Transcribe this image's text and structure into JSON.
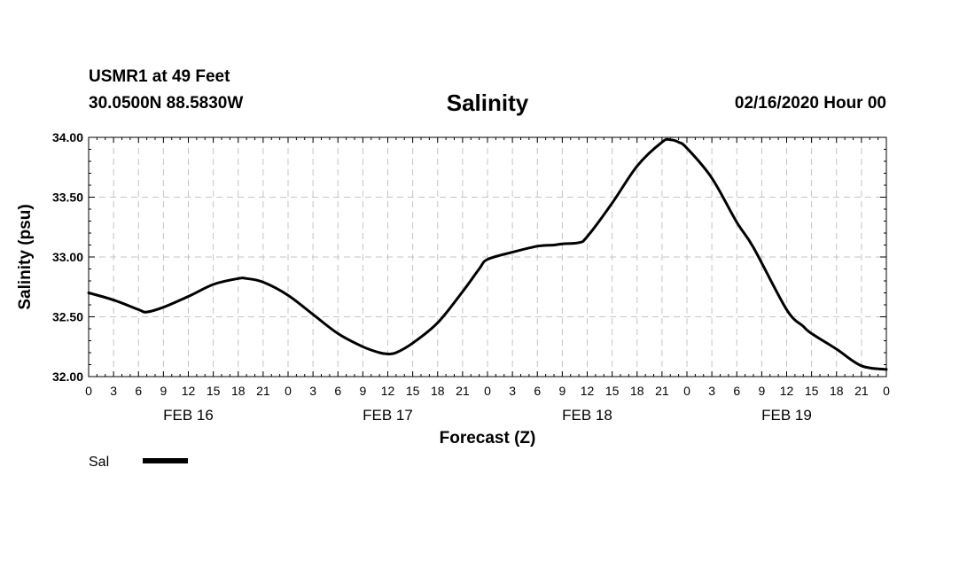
{
  "header": {
    "station": "USMR1 at 49 Feet",
    "coords": "30.0500N 88.5830W",
    "title": "Salinity",
    "runtime": "02/16/2020 Hour 00"
  },
  "legend": {
    "label": "Sal",
    "color": "#000000"
  },
  "chart_data": {
    "type": "line",
    "title": "Salinity",
    "xlabel": "Forecast (Z)",
    "ylabel": "Salinity (psu)",
    "ylim": [
      32.0,
      34.0
    ],
    "yticks": [
      "32.00",
      "32.50",
      "33.00",
      "33.50",
      "34.00"
    ],
    "xlim_hours": [
      0,
      96
    ],
    "x_tick_labels": [
      "0",
      "3",
      "6",
      "9",
      "12",
      "15",
      "18",
      "21",
      "0",
      "3",
      "6",
      "9",
      "12",
      "15",
      "18",
      "21",
      "0",
      "3",
      "6",
      "9",
      "12",
      "15",
      "18",
      "21",
      "0",
      "3",
      "6",
      "9",
      "12",
      "15",
      "18",
      "21",
      "0"
    ],
    "day_labels": [
      {
        "label": "FEB 16",
        "hour": 12
      },
      {
        "label": "FEB 17",
        "hour": 36
      },
      {
        "label": "FEB 18",
        "hour": 60
      },
      {
        "label": "FEB 19",
        "hour": 84
      }
    ],
    "grid": true,
    "series": [
      {
        "name": "Sal",
        "color": "#000000",
        "x": [
          0,
          3,
          6,
          7,
          9,
          12,
          15,
          18,
          19,
          21,
          24,
          27,
          30,
          33,
          35,
          36,
          37,
          39,
          42,
          45,
          47,
          48,
          51,
          54,
          56,
          57,
          59,
          60,
          63,
          66,
          69,
          70,
          71,
          72,
          75,
          78,
          80,
          84,
          86,
          87,
          90,
          93,
          96
        ],
        "values": [
          32.7,
          32.64,
          32.56,
          32.54,
          32.58,
          32.67,
          32.77,
          32.82,
          32.82,
          32.79,
          32.68,
          32.52,
          32.36,
          32.25,
          32.2,
          32.19,
          32.2,
          32.28,
          32.45,
          32.71,
          32.9,
          32.98,
          33.04,
          33.09,
          33.1,
          33.11,
          33.12,
          33.17,
          33.45,
          33.76,
          33.96,
          33.98,
          33.96,
          33.91,
          33.66,
          33.29,
          33.08,
          32.56,
          32.42,
          32.36,
          32.23,
          32.09,
          32.06
        ]
      }
    ]
  }
}
